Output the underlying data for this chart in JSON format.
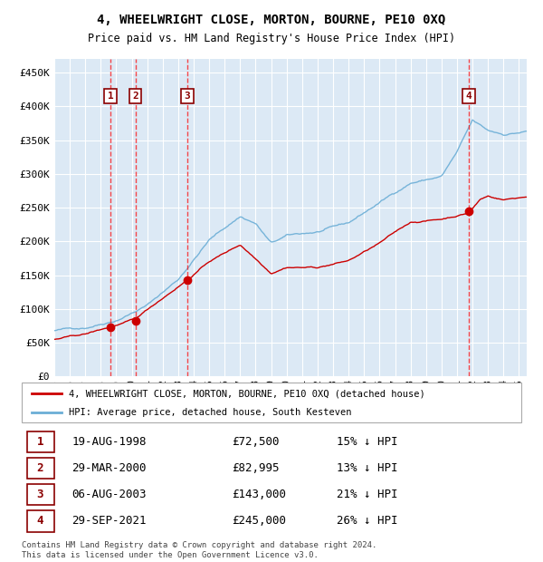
{
  "title": "4, WHEELWRIGHT CLOSE, MORTON, BOURNE, PE10 0XQ",
  "subtitle": "Price paid vs. HM Land Registry's House Price Index (HPI)",
  "plot_bg": "#dce9f5",
  "hpi_color": "#6baed6",
  "price_color": "#cc0000",
  "transactions": [
    {
      "num": 1,
      "date_label": "19-AUG-1998",
      "date_x": 1998.63,
      "price": 72500,
      "pct": "15% ↓ HPI"
    },
    {
      "num": 2,
      "date_label": "29-MAR-2000",
      "date_x": 2000.24,
      "price": 82995,
      "pct": "13% ↓ HPI"
    },
    {
      "num": 3,
      "date_label": "06-AUG-2003",
      "date_x": 2003.6,
      "price": 143000,
      "pct": "21% ↓ HPI"
    },
    {
      "num": 4,
      "date_label": "29-SEP-2021",
      "date_x": 2021.75,
      "price": 245000,
      "pct": "26% ↓ HPI"
    }
  ],
  "ylim": [
    0,
    470000
  ],
  "xlim_start": 1995.0,
  "xlim_end": 2025.5,
  "footer": "Contains HM Land Registry data © Crown copyright and database right 2024.\nThis data is licensed under the Open Government Licence v3.0.",
  "legend_line1": "4, WHEELWRIGHT CLOSE, MORTON, BOURNE, PE10 0XQ (detached house)",
  "legend_line2": "HPI: Average price, detached house, South Kesteven"
}
